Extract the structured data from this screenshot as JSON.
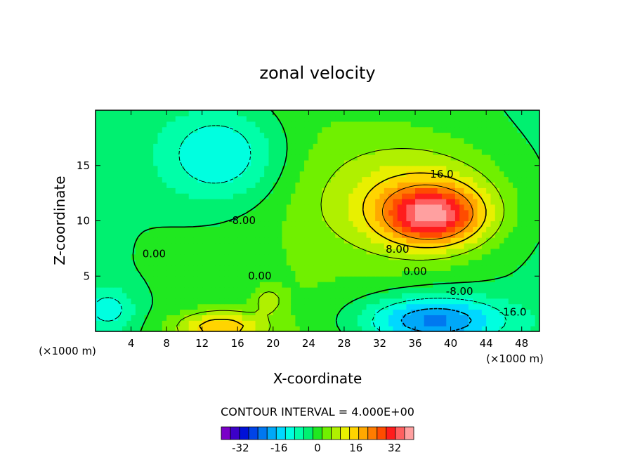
{
  "chart_data": {
    "type": "heatmap",
    "subtype": "filled-contour",
    "title": "zonal velocity",
    "xlabel": "X-coordinate",
    "ylabel": "Z-coordinate",
    "x_unit_left": "(×1000 m)",
    "x_unit_right": "(×1000 m)",
    "xlim": [
      0,
      50
    ],
    "ylim": [
      0,
      20
    ],
    "x_ticks": [
      4,
      8,
      12,
      16,
      20,
      24,
      28,
      32,
      36,
      40,
      44,
      48
    ],
    "y_ticks": [
      5,
      10,
      15
    ],
    "contour_interval_text": "CONTOUR INTERVAL = 4.000E+00",
    "contour_labels": [
      {
        "text": "16.0",
        "x": 39,
        "y": 14.2
      },
      {
        "text": "8.00",
        "x": 34,
        "y": 7.4
      },
      {
        "text": "0.00",
        "x": 36,
        "y": 5.4
      },
      {
        "text": "-8.00",
        "x": 41,
        "y": 3.6
      },
      {
        "text": "-16.0",
        "x": 47,
        "y": 1.7
      },
      {
        "text": "0.00",
        "x": 18.5,
        "y": 5.0
      },
      {
        "text": "-8.00",
        "x": 16.5,
        "y": 10.0
      },
      {
        "text": "0.00",
        "x": 6.6,
        "y": 7.0
      }
    ],
    "features": [
      {
        "kind": "max",
        "x": 38,
        "y": 10.5,
        "value": 30,
        "sx": 5.5,
        "sy": 2.6
      },
      {
        "kind": "jet",
        "x": 36,
        "y": 12,
        "value": 14,
        "sx": 10,
        "sy": 5
      },
      {
        "kind": "min",
        "x": 14,
        "y": 16,
        "value": -14,
        "sx": 7,
        "sy": 4.5
      },
      {
        "kind": "min",
        "x": 38,
        "y": 1.0,
        "value": -22,
        "sx": 8,
        "sy": 2.2
      },
      {
        "kind": "max",
        "x": 14,
        "y": 0.4,
        "value": 18,
        "sx": 5,
        "sy": 1.4
      },
      {
        "kind": "min",
        "x": 1.5,
        "y": 2,
        "value": -10,
        "sx": 3,
        "sy": 2
      },
      {
        "kind": "max",
        "x": 19.5,
        "y": 2.8,
        "value": 8,
        "sx": 1.6,
        "sy": 1.1
      }
    ],
    "colorbar": {
      "levels": [
        -40,
        -36,
        -32,
        -28,
        -24,
        -20,
        -16,
        -12,
        -8,
        -4,
        0,
        4,
        8,
        12,
        16,
        20,
        24,
        28,
        32,
        36,
        40
      ],
      "tick_labels": [
        "-32",
        "-16",
        "0",
        "16",
        "32"
      ],
      "tick_values": [
        -32,
        -16,
        0,
        16,
        32
      ],
      "colors": [
        "#7a00c8",
        "#3c00c8",
        "#0010d8",
        "#0044e8",
        "#0078f0",
        "#00a8f8",
        "#00d8ff",
        "#00ffe0",
        "#00ffa8",
        "#00f070",
        "#20e820",
        "#70f000",
        "#b0f000",
        "#e8f000",
        "#ffd400",
        "#ffa800",
        "#ff7c00",
        "#ff4c00",
        "#ff1c1c",
        "#ff6060",
        "#ffa0a0"
      ]
    }
  }
}
